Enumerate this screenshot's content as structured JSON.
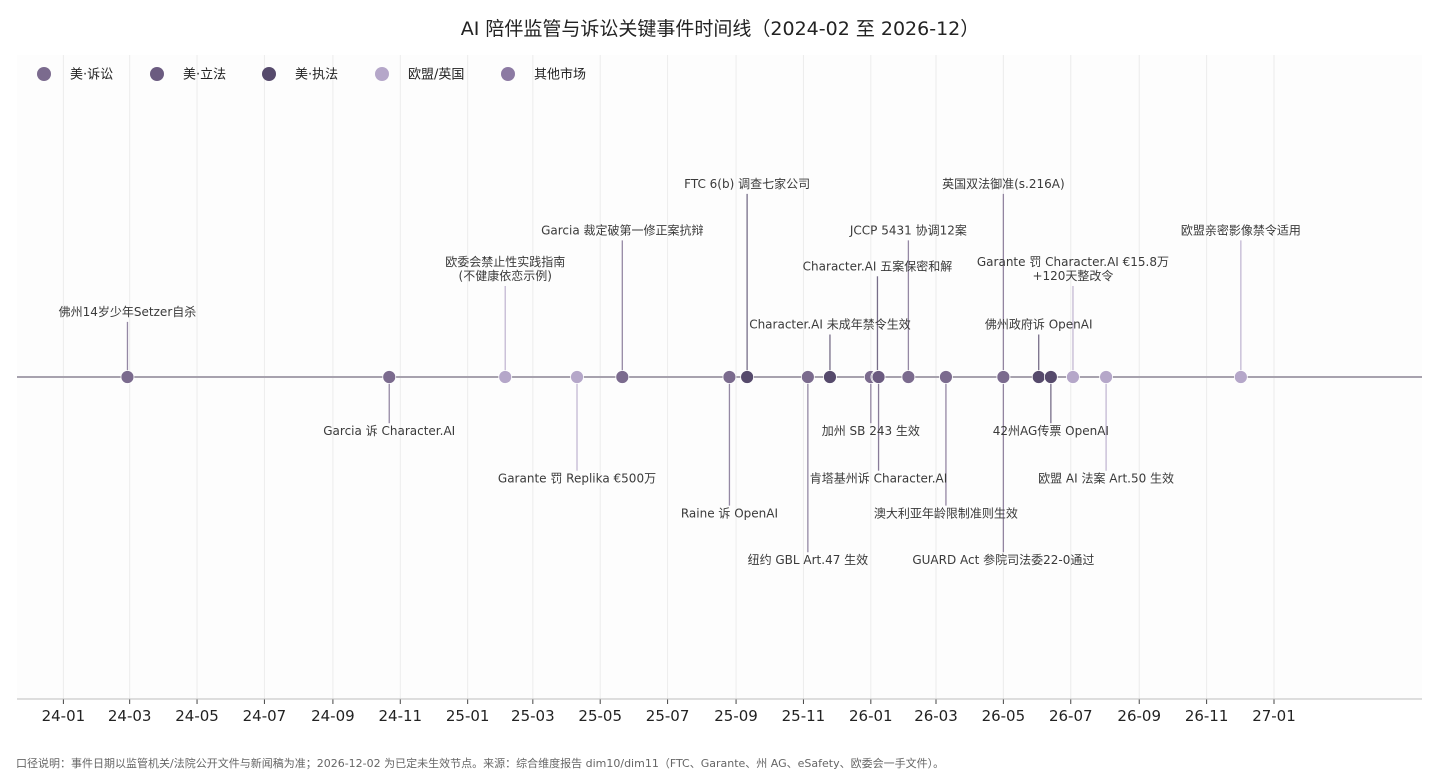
{
  "chart_data": {
    "type": "scatter",
    "title": "AI 陪伴监管与诉讼关键事件时间线（2024-02 至 2026-12）",
    "caption": "口径说明：事件日期以监管机关/法院公开文件与新闻稿为准；2026-12-02 为已定未生效节点。来源：综合维度报告 dim10/dim11（FTC、Garante、州 AG、eSafety、欧委会一手文件）。",
    "xlabel": "",
    "ylabel": "",
    "x_range": [
      "2023-11-20",
      "2027-05-15"
    ],
    "x_ticks": [
      {
        "date": "2024-01-01",
        "label": "24-01"
      },
      {
        "date": "2024-03-01",
        "label": "24-03"
      },
      {
        "date": "2024-05-01",
        "label": "24-05"
      },
      {
        "date": "2024-07-01",
        "label": "24-07"
      },
      {
        "date": "2024-09-01",
        "label": "24-09"
      },
      {
        "date": "2024-11-01",
        "label": "24-11"
      },
      {
        "date": "2025-01-01",
        "label": "25-01"
      },
      {
        "date": "2025-03-01",
        "label": "25-03"
      },
      {
        "date": "2025-05-01",
        "label": "25-05"
      },
      {
        "date": "2025-07-01",
        "label": "25-07"
      },
      {
        "date": "2025-09-01",
        "label": "25-09"
      },
      {
        "date": "2025-11-01",
        "label": "25-11"
      },
      {
        "date": "2026-01-01",
        "label": "26-01"
      },
      {
        "date": "2026-03-01",
        "label": "26-03"
      },
      {
        "date": "2026-05-01",
        "label": "26-05"
      },
      {
        "date": "2026-07-01",
        "label": "26-07"
      },
      {
        "date": "2026-09-01",
        "label": "26-09"
      },
      {
        "date": "2026-11-01",
        "label": "26-11"
      },
      {
        "date": "2027-01-01",
        "label": "27-01"
      }
    ],
    "grid": "vertical",
    "legend_position": "top-left",
    "categories": [
      {
        "name": "美·诉讼",
        "color": "#7b6b8e"
      },
      {
        "name": "美·立法",
        "color": "#6b5b80"
      },
      {
        "name": "美·执法",
        "color": "#564a6c"
      },
      {
        "name": "欧盟/英国",
        "color": "#b5a7c9"
      },
      {
        "name": "其他市场",
        "color": "#8c7aa3"
      }
    ],
    "events": [
      {
        "date": "2024-02-28",
        "category": "美·诉讼",
        "label": "佛州14岁少年Setzer自杀",
        "y": 0.63
      },
      {
        "date": "2024-10-22",
        "category": "美·诉讼",
        "label": "Garcia 诉 Character.AI",
        "y": -0.6
      },
      {
        "date": "2025-02-04",
        "category": "欧盟/英国",
        "label": "欧委会禁止性实践指南\n(不健康依恋示例)",
        "y": 1.0
      },
      {
        "date": "2025-04-10",
        "category": "欧盟/英国",
        "label": "Garante 罚 Replika €500万",
        "y": -1.09
      },
      {
        "date": "2025-05-21",
        "category": "美·诉讼",
        "label": "Garcia 裁定破第一修正案抗辩",
        "y": 1.47
      },
      {
        "date": "2025-08-26",
        "category": "美·诉讼",
        "label": "Raine 诉 OpenAI",
        "y": -1.45
      },
      {
        "date": "2025-09-11",
        "category": "美·执法",
        "label": "FTC 6(b) 调查七家公司",
        "y": 1.95
      },
      {
        "date": "2025-11-05",
        "category": "美·诉讼",
        "label": "纽约 GBL Art.47 生效",
        "y": -1.93
      },
      {
        "date": "2025-11-25",
        "category": "美·执法",
        "label": "Character.AI 未成年禁令生效",
        "y": 0.5
      },
      {
        "date": "2026-01-01",
        "category": "美·诉讼",
        "label": "加州 SB 243 生效",
        "y": -0.6
      },
      {
        "date": "2026-01-07",
        "category": "美·执法",
        "label": "Character.AI 五案保密和解",
        "y": 1.1
      },
      {
        "date": "2026-01-08",
        "category": "美·立法",
        "label": "肯塔基州诉 Character.AI",
        "y": -1.09
      },
      {
        "date": "2026-02-04",
        "category": "美·诉讼",
        "label": "JCCP 5431 协调12案",
        "y": 1.47
      },
      {
        "date": "2026-03-10",
        "category": "美·诉讼",
        "label": "澳大利亚年龄限制准则生效",
        "y": -1.45
      },
      {
        "date": "2026-05-01",
        "category": "美·诉讼",
        "label": "英国双法御准(s.216A)",
        "y": 1.95
      },
      {
        "date": "2026-05-01",
        "category": "美·诉讼",
        "label": "GUARD Act 参院司法委22-0通过",
        "y": -1.93
      },
      {
        "date": "2026-06-02",
        "category": "美·执法",
        "label": "佛州政府诉 OpenAI",
        "y": 0.5
      },
      {
        "date": "2026-06-13",
        "category": "美·执法",
        "label": "42州AG传票 OpenAI",
        "y": -0.6
      },
      {
        "date": "2026-07-03",
        "category": "欧盟/英国",
        "label": "Garante 罚 Character.AI €15.8万\n+120天整改令",
        "y": 1.0
      },
      {
        "date": "2026-08-02",
        "category": "欧盟/英国",
        "label": "欧盟 AI 法案 Art.50 生效",
        "y": -1.09
      },
      {
        "date": "2026-12-02",
        "category": "欧盟/英国",
        "label": "欧盟亲密影像禁令适用",
        "y": 1.47
      }
    ]
  }
}
